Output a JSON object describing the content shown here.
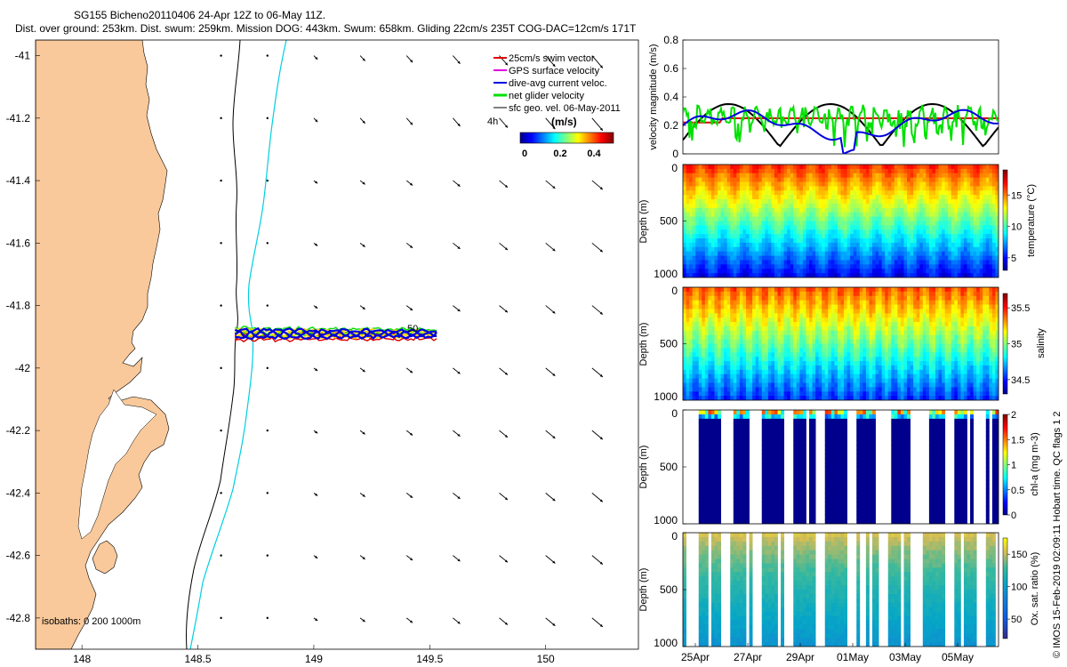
{
  "title_line1": "SG155 Bicheno20110406 24-Apr 12Z to 06-May 11Z.",
  "title_line2": "Dist. over ground: 253km. Dist. swum: 259km. Mission DOG: 443km. Swum: 658km. Gliding 22cm/s 235T COG-DAC=12cm/s 171T",
  "side_credit": "© IMOS 15-Feb-2019 02:09:11 Hobart time. QC flags 1  2",
  "colors": {
    "land": "#f9c99b",
    "cyan_contour": "#00d0e0",
    "swim": "#e00000",
    "gps": "#e000e0",
    "dac": "#0000e0",
    "net": "#00e000",
    "sfc": "#000000"
  },
  "chart_data": [
    {
      "type": "scatter",
      "name": "map",
      "xlim": [
        147.8,
        150.4
      ],
      "ylim": [
        -42.9,
        -40.95
      ],
      "xticks": [
        "148",
        "148.5",
        "149",
        "149.5",
        "150"
      ],
      "yticks": [
        "-41",
        "-41.2",
        "-41.4",
        "-41.6",
        "-41.8",
        "-42",
        "-42.2",
        "-42.4",
        "-42.6",
        "-42.8"
      ],
      "legend": {
        "placement": "top-right",
        "entries": [
          "25cm/s swim vector",
          "GPS surface velocity",
          "dive-avg current veloc.",
          "net glider velocity",
          "sfc geo. vel. 06-May-2011"
        ],
        "timestep": "4h",
        "colorbar_title": "(m/s)",
        "colorbar_ticks": [
          "0",
          "0.2",
          "0.4"
        ]
      },
      "bathy_label": "isobaths: 0   200  1000m",
      "track_label": "50",
      "track": {
        "lon_start": 148.66,
        "lon_end": 149.53,
        "lat": -41.89
      }
    },
    {
      "type": "line",
      "name": "velocity",
      "ylabel": "velocity magnitude (m/s)",
      "ylim": [
        0,
        0.8
      ],
      "yticks": [
        "0",
        "0.2",
        "0.4",
        "0.6",
        "0.8"
      ]
    },
    {
      "type": "heatmap",
      "name": "temperature",
      "ylabel": "Depth (m)",
      "clabel": "temperature (°C)",
      "yticks": [
        "0",
        "500",
        "1000"
      ],
      "cticks": [
        "5",
        "10",
        "15"
      ],
      "clim": [
        3,
        19
      ]
    },
    {
      "type": "heatmap",
      "name": "salinity",
      "ylabel": "Depth (m)",
      "clabel": "salinity",
      "yticks": [
        "0",
        "500",
        "1000"
      ],
      "cticks": [
        "34.5",
        "35",
        "35.5"
      ],
      "clim": [
        34.3,
        35.7
      ]
    },
    {
      "type": "heatmap",
      "name": "chlorophyll",
      "ylabel": "Depth (m)",
      "clabel": "chl-a (mg m-3)",
      "yticks": [
        "0",
        "500",
        "1000"
      ],
      "cticks": [
        "0",
        "0.5",
        "1",
        "1.5",
        "2"
      ],
      "clim": [
        0,
        2
      ]
    },
    {
      "type": "heatmap",
      "name": "oxygen",
      "ylabel": "Depth (m)",
      "clabel": "Ox. sat. ratio (%)",
      "yticks": [
        "0",
        "500",
        "1000"
      ],
      "cticks": [
        "50",
        "100",
        "150"
      ],
      "clim": [
        20,
        175
      ],
      "xticks": [
        "25Apr",
        "27Apr",
        "29Apr",
        "01May",
        "03May",
        "05May"
      ]
    }
  ]
}
